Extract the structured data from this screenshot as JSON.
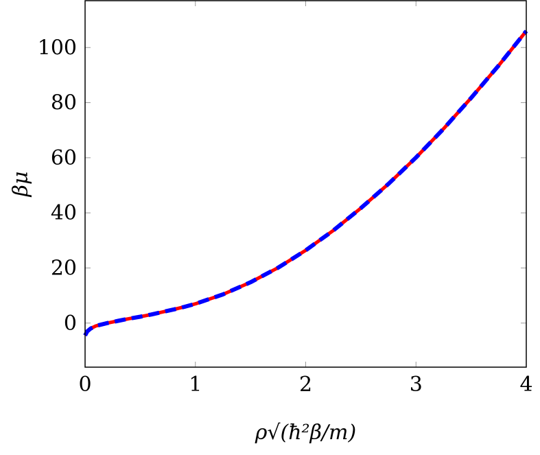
{
  "chart_data": {
    "type": "line",
    "title": "",
    "xlabel": "ρ√(ħ²β/m)",
    "ylabel": "βμ",
    "xlim": [
      0,
      4
    ],
    "ylim": [
      -16,
      117
    ],
    "x_ticks": [
      "0",
      "1",
      "2",
      "3",
      "4"
    ],
    "y_ticks": [
      "0",
      "20",
      "40",
      "60",
      "80",
      "100"
    ],
    "grid": false,
    "legend": "none",
    "series": [
      {
        "color": "#ff0000",
        "style": "solid",
        "x": [
          0,
          0.02,
          0.05,
          0.1,
          0.2,
          0.3,
          0.4,
          0.5,
          0.6,
          0.7,
          0.8,
          0.9,
          1.0,
          1.25,
          1.5,
          1.75,
          2.0,
          2.25,
          2.5,
          2.75,
          3.0,
          3.25,
          3.5,
          3.75,
          4.0
        ],
        "y": [
          -4.5,
          -3.0,
          -2.0,
          -1.0,
          0.0,
          0.8,
          1.6,
          2.3,
          3.1,
          4.0,
          4.9,
          5.9,
          7.0,
          10.4,
          14.8,
          20.1,
          26.4,
          33.6,
          41.7,
          50.5,
          60.1,
          70.5,
          81.7,
          93.5,
          106.0
        ]
      },
      {
        "color": "#0000ff",
        "style": "dashed",
        "x": [
          0,
          0.02,
          0.05,
          0.1,
          0.2,
          0.3,
          0.4,
          0.5,
          0.6,
          0.7,
          0.8,
          0.9,
          1.0,
          1.25,
          1.5,
          1.75,
          2.0,
          2.25,
          2.5,
          2.75,
          3.0,
          3.25,
          3.5,
          3.75,
          4.0
        ],
        "y": [
          -4.5,
          -3.0,
          -2.0,
          -1.0,
          0.0,
          0.8,
          1.6,
          2.3,
          3.1,
          4.0,
          4.9,
          5.9,
          7.0,
          10.4,
          14.8,
          20.1,
          26.4,
          33.6,
          41.7,
          50.5,
          60.1,
          70.5,
          81.7,
          93.5,
          106.0
        ]
      }
    ]
  }
}
